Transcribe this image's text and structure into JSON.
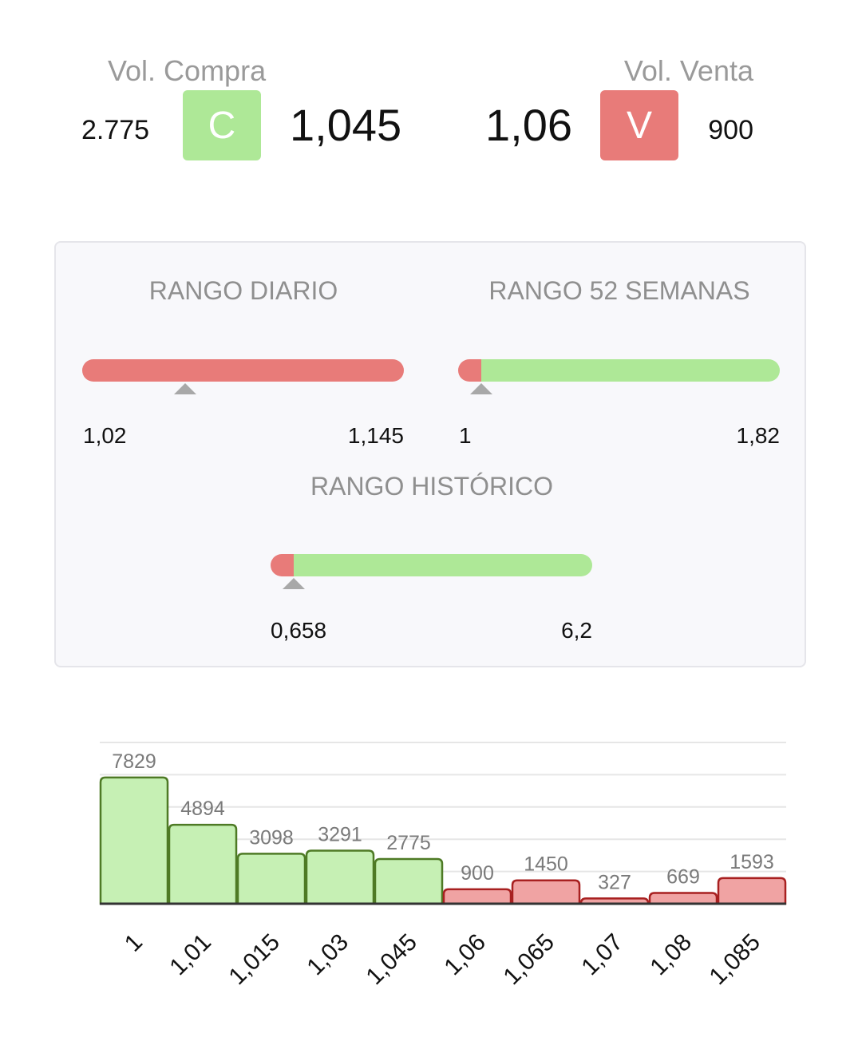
{
  "quote": {
    "buy": {
      "label": "Vol. Compra",
      "volume": "2.775",
      "badge": "C",
      "price": "1,045",
      "color": "#aee897"
    },
    "sell": {
      "label": "Vol. Venta",
      "volume": "900",
      "badge": "V",
      "price": "1,06",
      "color": "#e87b79"
    }
  },
  "ranges": {
    "daily": {
      "title": "RANGO DIARIO",
      "min": "1,02",
      "max": "1,145",
      "marker_fraction": 0.32,
      "red_fraction": 1.0
    },
    "weeks52": {
      "title": "RANGO 52 SEMANAS",
      "min": "1",
      "max": "1,82",
      "marker_fraction": 0.07,
      "red_fraction": 0.07
    },
    "historic": {
      "title": "RANGO HISTÓRICO",
      "min": "0,658",
      "max": "6,2",
      "marker_fraction": 0.07,
      "red_fraction": 0.07
    }
  },
  "colors": {
    "green_fill": "#c6f0b4",
    "green_stroke": "#4e7a25",
    "red_fill": "#f0a3a3",
    "red_stroke": "#a82020",
    "grid": "#e6e6e6",
    "axis": "#333333"
  },
  "chart_data": {
    "type": "bar",
    "categories": [
      "1",
      "1,01",
      "1,015",
      "1,03",
      "1,045",
      "1,06",
      "1,065",
      "1,07",
      "1,08",
      "1,085"
    ],
    "values": [
      7829,
      4894,
      3098,
      3291,
      2775,
      900,
      1450,
      327,
      669,
      1593
    ],
    "sides": [
      "buy",
      "buy",
      "buy",
      "buy",
      "buy",
      "sell",
      "sell",
      "sell",
      "sell",
      "sell"
    ],
    "ylim": [
      0,
      10000
    ],
    "grid": true,
    "title": "",
    "xlabel": "",
    "ylabel": ""
  }
}
